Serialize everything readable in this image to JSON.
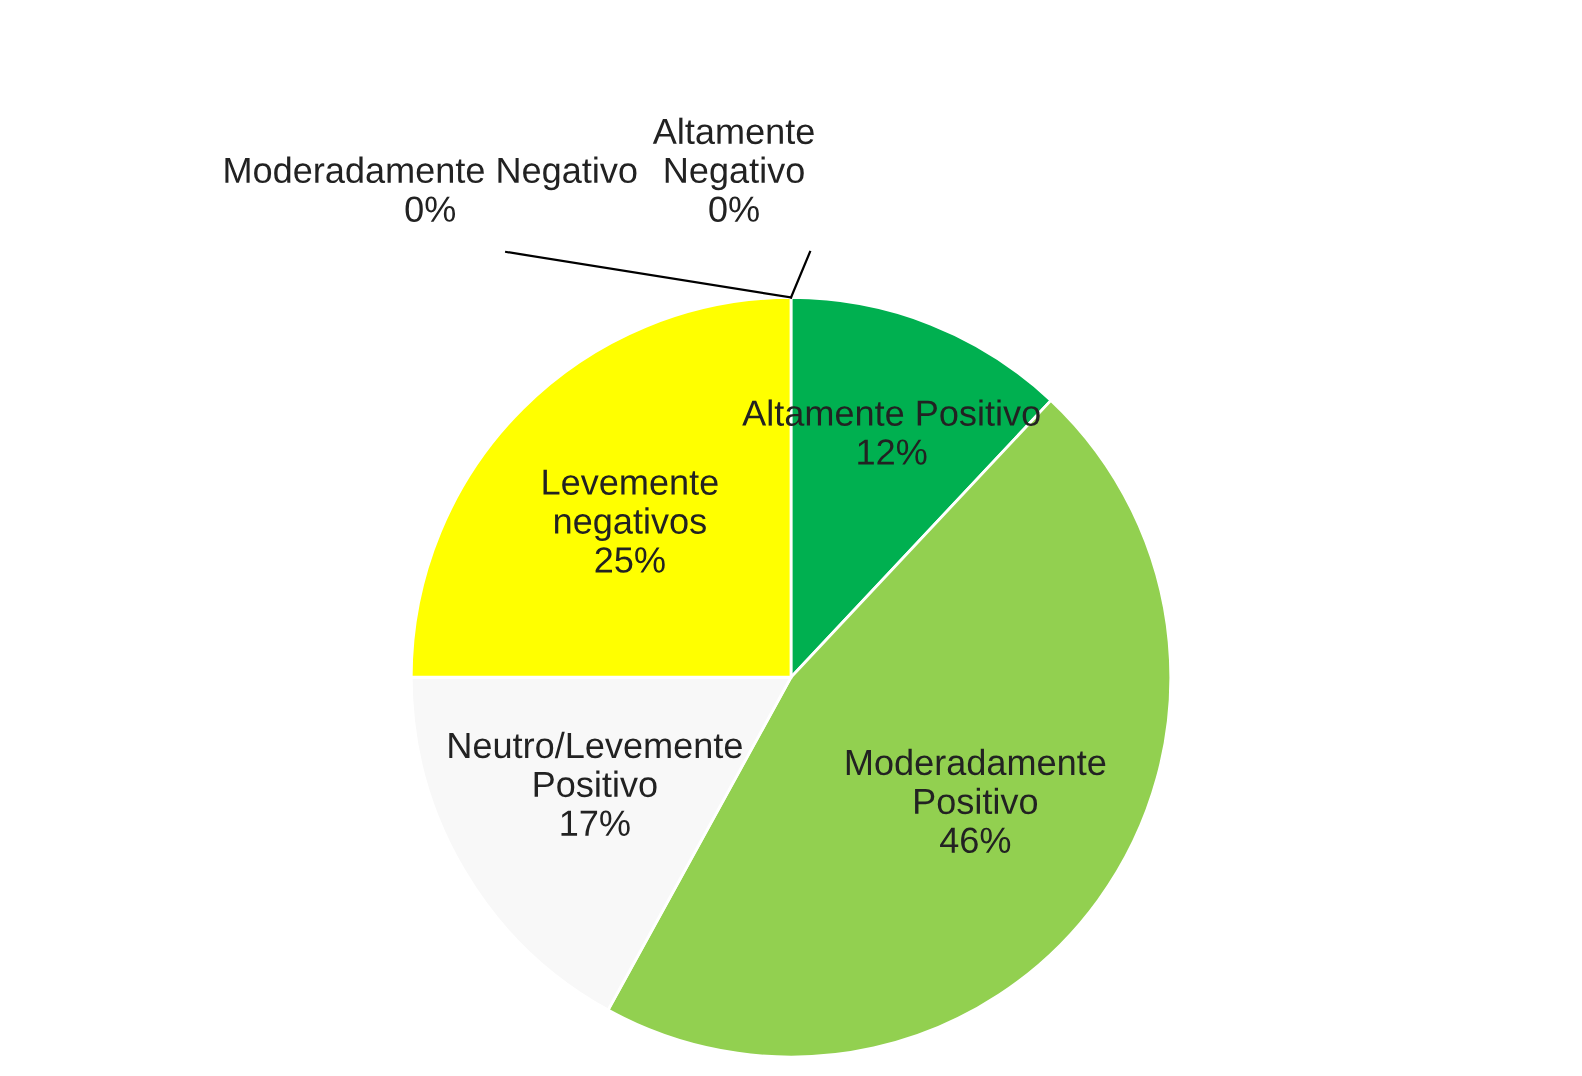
{
  "chart_data": {
    "type": "pie",
    "categories": [
      "Altamente Positivo",
      "Moderadamente\nPositivo",
      "Neutro/Levemente\nPositivo",
      "Levemente\nnegativos",
      "Moderadamente Negativo",
      "Altamente\nNegativo"
    ],
    "values": [
      12,
      46,
      17,
      25,
      0,
      0
    ],
    "value_labels": [
      "12%",
      "46%",
      "17%",
      "25%",
      "0%",
      "0%"
    ],
    "colors": [
      "#00b050",
      "#92d050",
      "#f8f8f8",
      "#ffff00",
      "#c00000",
      "#ff0000"
    ]
  }
}
